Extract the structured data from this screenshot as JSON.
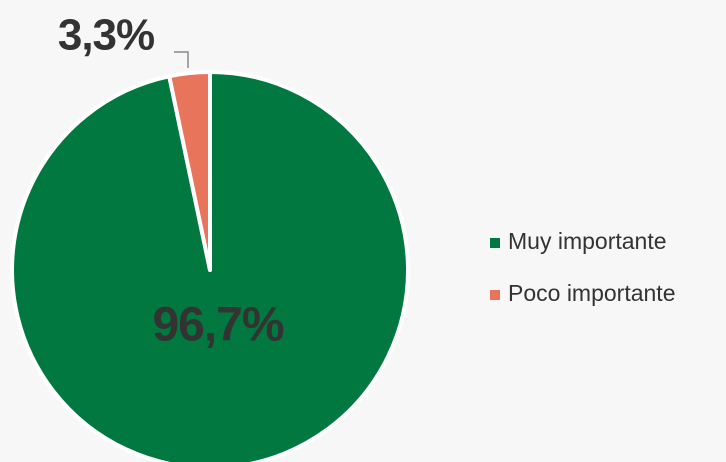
{
  "chart_data": {
    "type": "pie",
    "categories": [
      "Muy importante",
      "Poco importante"
    ],
    "values": [
      96.7,
      3.3
    ],
    "value_labels": [
      "96,7%",
      "3,3%"
    ],
    "colors": [
      "#00783f",
      "#e8745b"
    ],
    "legend": "right"
  }
}
